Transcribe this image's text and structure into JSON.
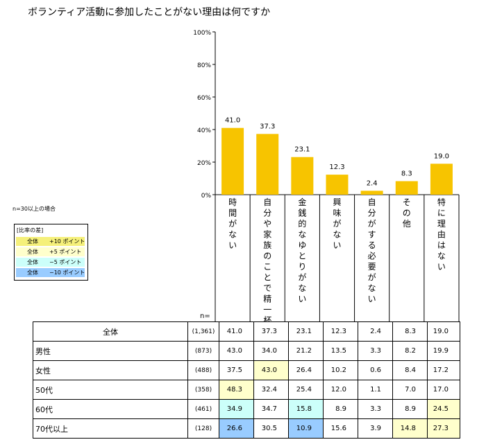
{
  "title": "ボランティア活動に参加したことがない理由は何ですか",
  "chart_data": {
    "type": "bar",
    "categories": [
      "時間がない",
      "自分や家族のことで精一杯",
      "金銭的なゆとりがない",
      "興味がない",
      "自分がする必要がない",
      "その他",
      "特に理由はない"
    ],
    "values": [
      41.0,
      37.3,
      23.1,
      12.3,
      2.4,
      8.3,
      19.0
    ],
    "value_labels": [
      "41.0",
      "37.3",
      "23.1",
      "12.3",
      "2.4",
      "8.3",
      "19.0"
    ],
    "ylim": [
      0,
      100
    ],
    "y_ticks": [
      "0%",
      "20%",
      "40%",
      "60%",
      "80%",
      "100%"
    ],
    "bar_color": "#f7c400"
  },
  "legend": {
    "note": "n=30以上の場合",
    "heading": "[比率の差]",
    "rows": [
      {
        "base": "全体",
        "diff": "+10 ポイント",
        "color": "#f5f07a"
      },
      {
        "base": "全体",
        "diff": "+5 ポイント",
        "color": "#ffffcc"
      },
      {
        "base": "全体",
        "diff": "−5 ポイント",
        "color": "#ccfffa"
      },
      {
        "base": "全体",
        "diff": "−10 ポイント",
        "color": "#99ccff"
      }
    ]
  },
  "table": {
    "n_header": "n=",
    "rows": [
      {
        "label": "全体",
        "n": "(1,361)",
        "values": [
          "41.0",
          "37.3",
          "23.1",
          "12.3",
          "2.4",
          "8.3",
          "19.0"
        ],
        "highlights": [
          "",
          "",
          "",
          "",
          "",
          "",
          ""
        ]
      },
      {
        "label": "男性",
        "n": "(873)",
        "values": [
          "43.0",
          "34.0",
          "21.2",
          "13.5",
          "3.3",
          "8.2",
          "19.9"
        ],
        "highlights": [
          "",
          "",
          "",
          "",
          "",
          "",
          ""
        ]
      },
      {
        "label": "女性",
        "n": "(488)",
        "values": [
          "37.5",
          "43.0",
          "26.4",
          "10.2",
          "0.6",
          "8.4",
          "17.2"
        ],
        "highlights": [
          "",
          "+5",
          "",
          "",
          "",
          "",
          ""
        ]
      },
      {
        "label": "50代",
        "n": "(358)",
        "values": [
          "48.3",
          "32.4",
          "25.4",
          "12.0",
          "1.1",
          "7.0",
          "17.0"
        ],
        "highlights": [
          "+5",
          "",
          "",
          "",
          "",
          "",
          ""
        ]
      },
      {
        "label": "60代",
        "n": "(461)",
        "values": [
          "34.9",
          "34.7",
          "15.8",
          "8.9",
          "3.3",
          "8.9",
          "24.5"
        ],
        "highlights": [
          "-5",
          "",
          "-5",
          "",
          "",
          "",
          "+5"
        ]
      },
      {
        "label": "70代以上",
        "n": "(128)",
        "values": [
          "26.6",
          "30.5",
          "10.9",
          "15.6",
          "3.9",
          "14.8",
          "27.3"
        ],
        "highlights": [
          "-10",
          "",
          "-10",
          "",
          "",
          "+5",
          "+5"
        ]
      }
    ]
  }
}
